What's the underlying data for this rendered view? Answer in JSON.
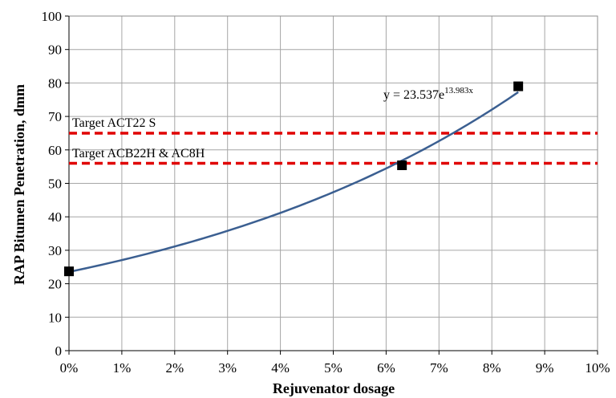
{
  "chart_data": {
    "type": "scatter",
    "title": "",
    "xlabel": "Rejuvenator dosage",
    "ylabel": "RAP Bitumen Penetration, dmm",
    "xlim": [
      0,
      0.1
    ],
    "ylim": [
      0,
      100
    ],
    "x_ticks": [
      "0%",
      "1%",
      "2%",
      "3%",
      "4%",
      "5%",
      "6%",
      "7%",
      "8%",
      "9%",
      "10%"
    ],
    "y_ticks": [
      "0",
      "10",
      "20",
      "30",
      "40",
      "50",
      "60",
      "70",
      "80",
      "90",
      "100"
    ],
    "grid": true,
    "points": [
      {
        "x": 0.0,
        "y": 23.7
      },
      {
        "x": 0.063,
        "y": 55.4
      },
      {
        "x": 0.085,
        "y": 79.0
      }
    ],
    "trendline": {
      "type": "exponential",
      "a": 23.537,
      "b": 13.983,
      "x_range": [
        0,
        0.085
      ],
      "label_base": "y = 23.537e",
      "label_exp": "13.983x",
      "color": "#3b5f91"
    },
    "reference_lines": [
      {
        "y": 65,
        "label": "Target ACT22 S",
        "color": "#e00000"
      },
      {
        "y": 56,
        "label": "Target ACB22H & AC8H",
        "color": "#e00000"
      }
    ],
    "marker_color": "#000000"
  }
}
